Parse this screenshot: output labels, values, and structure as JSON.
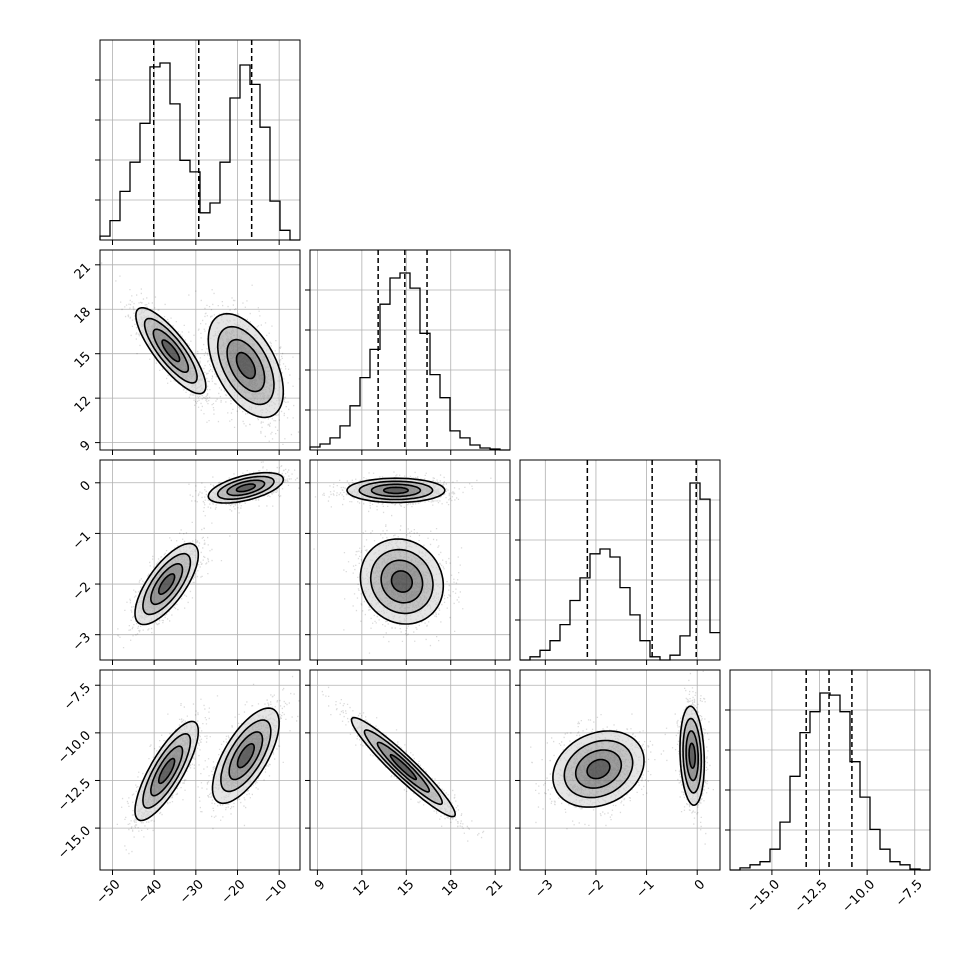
{
  "chart_data": {
    "type": "corner",
    "parameters": [
      {
        "id": "p0",
        "range": [
          -53,
          -5
        ],
        "ticks": [
          -50,
          -40,
          -30,
          -20,
          -10
        ],
        "tick_labels": [
          "−50",
          "−40",
          "−30",
          "−20",
          "−10"
        ]
      },
      {
        "id": "p1",
        "range": [
          8.5,
          22
        ],
        "ticks": [
          9,
          12,
          15,
          18,
          21
        ],
        "tick_labels": [
          "9",
          "12",
          "15",
          "18",
          "21"
        ]
      },
      {
        "id": "p2",
        "range": [
          -3.5,
          0.45
        ],
        "ticks": [
          -3,
          -2,
          -1,
          0
        ],
        "tick_labels": [
          "−3",
          "−2",
          "−1",
          "0"
        ]
      },
      {
        "id": "p3",
        "range": [
          -17.2,
          -6.7
        ],
        "ticks": [
          -15.0,
          -12.5,
          -10.0,
          -7.5
        ],
        "tick_labels": [
          "−15.0",
          "−12.5",
          "−10.0",
          "−7.5"
        ]
      }
    ],
    "histograms": [
      {
        "param": 0,
        "bin_edges": [
          -53,
          -50.6,
          -48.2,
          -45.8,
          -43.4,
          -41,
          -38.6,
          -36.2,
          -33.8,
          -31.4,
          -29,
          -26.6,
          -24.2,
          -21.8,
          -19.4,
          -17,
          -14.6,
          -12.2,
          -9.8,
          -7.4,
          -5
        ],
        "counts": [
          2,
          10,
          25,
          40,
          60,
          89,
          91,
          70,
          41,
          35,
          14,
          19,
          40,
          73,
          90,
          80,
          58,
          20,
          5,
          0
        ],
        "quantiles": [
          -40.1,
          -29.3,
          -16.6
        ]
      },
      {
        "param": 1,
        "bin_edges": [
          8.5,
          9.175,
          9.85,
          10.525,
          11.2,
          11.875,
          12.55,
          13.225,
          13.9,
          14.575,
          15.25,
          15.925,
          16.6,
          17.275,
          17.95,
          18.625,
          19.3,
          19.975,
          20.65,
          21.325,
          22
        ],
        "counts": [
          3,
          6,
          12,
          24,
          44,
          72,
          100,
          145,
          171,
          176,
          161,
          116,
          75,
          52,
          19,
          12,
          5,
          2,
          1,
          0
        ],
        "quantiles": [
          13.1,
          14.9,
          16.4
        ]
      },
      {
        "param": 2,
        "bin_edges": [
          -3.5,
          -3.3025,
          -3.105,
          -2.9075,
          -2.71,
          -2.5125,
          -2.315,
          -2.1175,
          -1.92,
          -1.7225,
          -1.525,
          -1.3275,
          -1.13,
          -0.9325,
          -0.735,
          -0.5375,
          -0.34,
          -0.1425,
          0.055,
          0.2525,
          0.45
        ],
        "counts": [
          0,
          2,
          6,
          12,
          22,
          37,
          51,
          66,
          69,
          64,
          45,
          28,
          12,
          2,
          0,
          3,
          15,
          110,
          100,
          17
        ],
        "quantiles": [
          -2.17,
          -0.89,
          -0.02
        ]
      },
      {
        "param": 3,
        "bin_edges": [
          -17.2,
          -16.675,
          -16.15,
          -15.625,
          -15.1,
          -14.575,
          -14.05,
          -13.525,
          -13.0,
          -12.475,
          -11.95,
          -11.425,
          -10.9,
          -10.375,
          -9.85,
          -9.325,
          -8.8,
          -8.275,
          -7.75,
          -7.225,
          -6.7
        ],
        "counts": [
          0,
          2,
          5,
          8,
          20,
          46,
          90,
          132,
          152,
          170,
          168,
          152,
          104,
          70,
          39,
          20,
          8,
          5,
          1,
          0
        ],
        "quantiles": [
          -13.2,
          -12.0,
          -10.8
        ]
      }
    ],
    "pairs": [
      {
        "x": 0,
        "y": 1,
        "clusters": [
          {
            "center": [
              -36,
              15.2
            ],
            "sx": 4.2,
            "sy": 1.45,
            "corr": -0.82
          },
          {
            "center": [
              -18,
              14.2
            ],
            "sx": 4.5,
            "sy": 1.75,
            "corr": -0.5
          }
        ]
      },
      {
        "x": 0,
        "y": 2,
        "clusters": [
          {
            "center": [
              -37,
              -2.0
            ],
            "sx": 3.8,
            "sy": 0.4,
            "corr": 0.72
          },
          {
            "center": [
              -18,
              -0.1
            ],
            "sx": 4.5,
            "sy": 0.15,
            "corr": 0.55
          }
        ]
      },
      {
        "x": 1,
        "y": 2,
        "clusters": [
          {
            "center": [
              14.3,
              -0.15
            ],
            "sx": 1.65,
            "sy": 0.12,
            "corr": 0.0
          },
          {
            "center": [
              14.7,
              -1.95
            ],
            "sx": 1.4,
            "sy": 0.42,
            "corr": -0.1
          }
        ]
      },
      {
        "x": 0,
        "y": 3,
        "clusters": [
          {
            "center": [
              -37,
              -12.0
            ],
            "sx": 3.8,
            "sy": 1.3,
            "corr": 0.8
          },
          {
            "center": [
              -18,
              -11.2
            ],
            "sx": 4.0,
            "sy": 1.25,
            "corr": 0.68
          }
        ]
      },
      {
        "x": 1,
        "y": 3,
        "clusters": [
          {
            "center": [
              14.8,
              -11.8
            ],
            "sx": 1.75,
            "sy": 1.3,
            "corr": -0.95
          }
        ]
      },
      {
        "x": 2,
        "y": 3,
        "clusters": [
          {
            "center": [
              -1.95,
              -11.9
            ],
            "sx": 0.45,
            "sy": 1.0,
            "corr": 0.22
          },
          {
            "center": [
              -0.1,
              -11.2
            ],
            "sx": 0.12,
            "sy": 1.3,
            "corr": -0.15
          }
        ]
      }
    ],
    "contour_levels_sigma": [
      0.5,
      1.0,
      1.5,
      2.0
    ],
    "point_color": "#000000",
    "grid": true,
    "legend": "none",
    "title": "",
    "xlabel": "",
    "ylabel": ""
  }
}
